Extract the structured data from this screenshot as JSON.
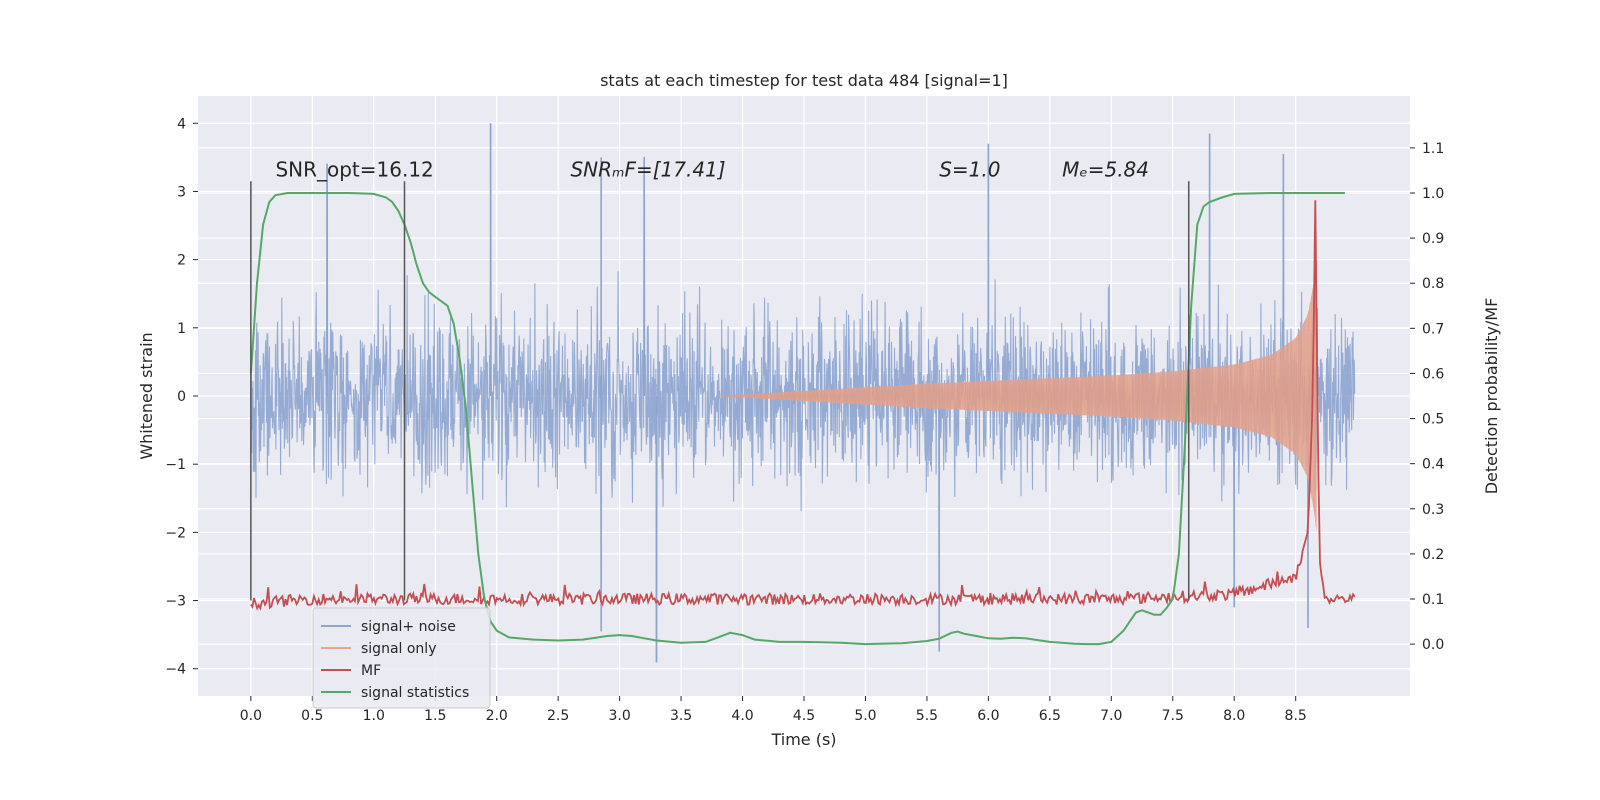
{
  "chart_data": {
    "type": "line",
    "title": "stats at each timestep for test data 484 [signal=1]",
    "xlabel": "Time (s)",
    "ylabel": "Whitened strain",
    "y2label": "Detection probability/MF",
    "xlim": [
      -0.43,
      9.43
    ],
    "ylim": [
      -4.4,
      4.4
    ],
    "y2lim": [
      -0.115,
      1.215
    ],
    "xticks": [
      0.0,
      0.5,
      1.0,
      1.5,
      2.0,
      2.5,
      3.0,
      3.5,
      4.0,
      4.5,
      5.0,
      5.5,
      6.0,
      6.5,
      7.0,
      7.5,
      8.0,
      8.5
    ],
    "xtick_labels": [
      "0.0",
      "0.5",
      "1.0",
      "1.5",
      "2.0",
      "2.5",
      "3.0",
      "3.5",
      "4.0",
      "4.5",
      "5.0",
      "5.5",
      "6.0",
      "6.5",
      "7.0",
      "7.5",
      "8.0",
      "8.5"
    ],
    "yticks": [
      4,
      3,
      2,
      1,
      0,
      -1,
      -2,
      -3,
      -4
    ],
    "ytick_labels": [
      "4",
      "3",
      "2",
      "1",
      "0",
      "−1",
      "−2",
      "−3",
      "−4"
    ],
    "y2ticks": [
      1.1,
      1.0,
      0.9,
      0.8,
      0.7,
      0.6,
      0.5,
      0.4,
      0.3,
      0.2,
      0.1,
      0.0
    ],
    "y2tick_labels": [
      "1.1",
      "1.0",
      "0.9",
      "0.8",
      "0.7",
      "0.6",
      "0.5",
      "0.4",
      "0.3",
      "0.2",
      "0.1",
      "0.0"
    ],
    "grid": true,
    "legend_position": "lower-left",
    "annotations": [
      {
        "text": "SNR_opt=16.12",
        "x": 0.2,
        "y": 3.22
      },
      {
        "text": "SNRₘF=[17.41]",
        "x": 2.6,
        "y": 3.22
      },
      {
        "text": "S=1.0",
        "x": 5.6,
        "y": 3.22
      },
      {
        "text": "Mₑ=5.84",
        "x": 6.6,
        "y": 3.22
      }
    ],
    "vertical_lines": [
      0.0,
      1.25,
      7.63
    ],
    "vertical_line_range": [
      -3.0,
      3.15
    ],
    "series": [
      {
        "name": "signal+ noise",
        "color": "#8da4cf",
        "x_range": [
          0.0,
          8.98
        ],
        "typical_amplitude": 1.3,
        "peak_positive": [
          [
            1.95,
            4.0
          ],
          [
            0.62,
            3.4
          ],
          [
            2.85,
            3.5
          ],
          [
            3.2,
            3.5
          ],
          [
            6.0,
            3.7
          ],
          [
            7.8,
            3.85
          ],
          [
            8.4,
            3.55
          ]
        ],
        "peak_negative": [
          [
            3.3,
            -3.9
          ],
          [
            5.6,
            -3.75
          ],
          [
            2.85,
            -3.45
          ],
          [
            8.6,
            -3.4
          ],
          [
            8.0,
            -3.1
          ]
        ]
      },
      {
        "name": "signal only",
        "color": "#e8a58e",
        "x": [
          5.5,
          6.0,
          6.5,
          7.0,
          7.5,
          8.0,
          8.3,
          8.5,
          8.6,
          8.65,
          8.67
        ],
        "envelope": [
          0.18,
          0.22,
          0.26,
          0.3,
          0.36,
          0.46,
          0.6,
          0.85,
          1.2,
          1.7,
          2.0
        ]
      },
      {
        "name": "MF",
        "color": "#c44e52",
        "x": [
          0.0,
          0.5,
          1.0,
          2.0,
          3.0,
          4.0,
          5.0,
          6.0,
          7.0,
          8.0,
          8.5,
          8.6,
          8.64,
          8.66,
          8.68,
          8.7,
          8.75,
          8.98
        ],
        "y": [
          0.09,
          0.1,
          0.1,
          0.1,
          0.1,
          0.1,
          0.1,
          0.1,
          0.1,
          0.11,
          0.15,
          0.25,
          0.55,
          1.0,
          0.45,
          0.15,
          0.1,
          0.1
        ]
      },
      {
        "name": "signal statistics",
        "color": "#55a868",
        "x": [
          0.0,
          0.05,
          0.1,
          0.15,
          0.2,
          0.3,
          0.5,
          0.8,
          1.0,
          1.1,
          1.15,
          1.2,
          1.25,
          1.3,
          1.35,
          1.4,
          1.45,
          1.5,
          1.55,
          1.6,
          1.65,
          1.7,
          1.75,
          1.8,
          1.85,
          1.9,
          1.95,
          2.0,
          2.1,
          2.3,
          2.5,
          2.7,
          2.9,
          3.0,
          3.1,
          3.2,
          3.3,
          3.5,
          3.7,
          3.8,
          3.9,
          4.0,
          4.1,
          4.3,
          4.5,
          4.8,
          5.0,
          5.3,
          5.5,
          5.6,
          5.7,
          5.75,
          5.8,
          5.9,
          6.0,
          6.1,
          6.2,
          6.3,
          6.5,
          6.7,
          6.8,
          6.9,
          7.0,
          7.1,
          7.15,
          7.2,
          7.25,
          7.3,
          7.35,
          7.4,
          7.45,
          7.5,
          7.55,
          7.6,
          7.65,
          7.7,
          7.75,
          7.8,
          7.9,
          8.0,
          8.3,
          8.6,
          8.9
        ],
        "y": [
          0.6,
          0.8,
          0.93,
          0.98,
          0.995,
          1.0,
          1.0,
          1.0,
          0.998,
          0.99,
          0.98,
          0.96,
          0.93,
          0.89,
          0.84,
          0.8,
          0.78,
          0.77,
          0.76,
          0.75,
          0.71,
          0.63,
          0.52,
          0.36,
          0.2,
          0.1,
          0.05,
          0.03,
          0.015,
          0.01,
          0.008,
          0.01,
          0.018,
          0.02,
          0.018,
          0.013,
          0.008,
          0.003,
          0.005,
          0.015,
          0.025,
          0.02,
          0.01,
          0.005,
          0.005,
          0.003,
          0.0,
          0.002,
          0.007,
          0.012,
          0.025,
          0.028,
          0.023,
          0.018,
          0.013,
          0.012,
          0.014,
          0.013,
          0.005,
          0.001,
          0.0,
          0.0,
          0.005,
          0.03,
          0.05,
          0.07,
          0.075,
          0.07,
          0.065,
          0.065,
          0.08,
          0.1,
          0.2,
          0.45,
          0.75,
          0.93,
          0.97,
          0.98,
          0.99,
          0.998,
          1.0,
          1.0,
          1.0
        ]
      }
    ]
  }
}
